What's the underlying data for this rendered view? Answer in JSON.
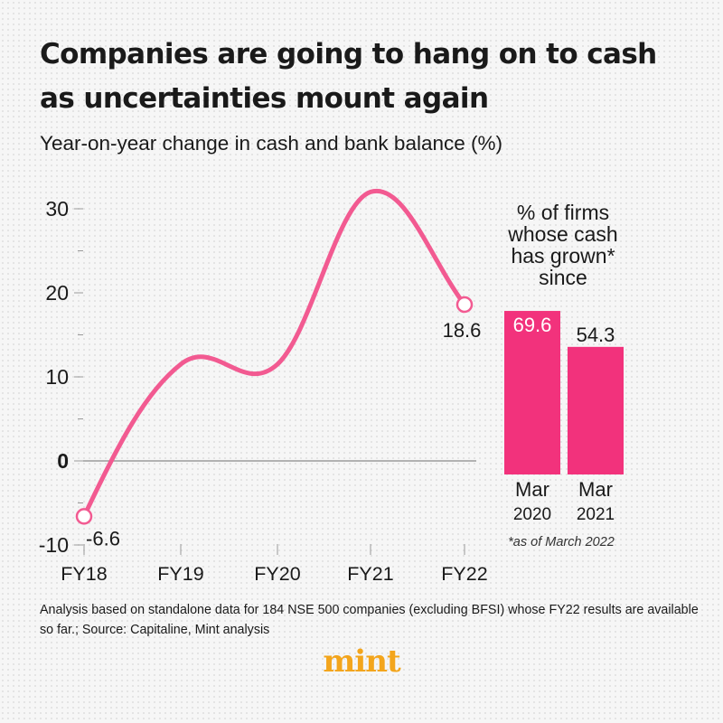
{
  "title": "Companies are going to hang on to cash as uncertainties mount again",
  "subtitle": "Year-on-year change in cash and bank balance (%)",
  "note": "Analysis based on standalone data for 184 NSE 500 companies (excluding BFSI) whose FY22 results are available so far.; Source: Capitaline, Mint analysis",
  "logo": "mint",
  "colors": {
    "accent": "#f25a91",
    "bar": "#f2327c",
    "axis": "#999999"
  },
  "chart_data": [
    {
      "type": "line",
      "title": "Year-on-year change in cash and bank balance (%)",
      "x": [
        "FY18",
        "FY19",
        "FY20",
        "FY21",
        "FY22"
      ],
      "y": [
        -6.6,
        11.5,
        11.5,
        32,
        18.6
      ],
      "point_labels": [
        {
          "x": "FY18",
          "label": "-6.6"
        },
        {
          "x": "FY22",
          "label": "18.6"
        }
      ],
      "ylim": [
        -10,
        32
      ],
      "yticks": [
        -10,
        0,
        10,
        20,
        30
      ],
      "ytick_labels": [
        "-10",
        "0",
        "10",
        "20",
        "30"
      ],
      "grid": false
    },
    {
      "type": "bar",
      "title": "% of firms whose cash has grown* since",
      "title_lines": [
        "% of firms",
        "whose cash",
        "has grown*",
        "since"
      ],
      "categories": [
        {
          "line1": "Mar",
          "line2": "2020"
        },
        {
          "line1": "Mar",
          "line2": "2021"
        }
      ],
      "values": [
        69.6,
        54.3
      ],
      "value_labels": [
        "69.6",
        "54.3"
      ],
      "footnote": "*as of March 2022"
    }
  ]
}
